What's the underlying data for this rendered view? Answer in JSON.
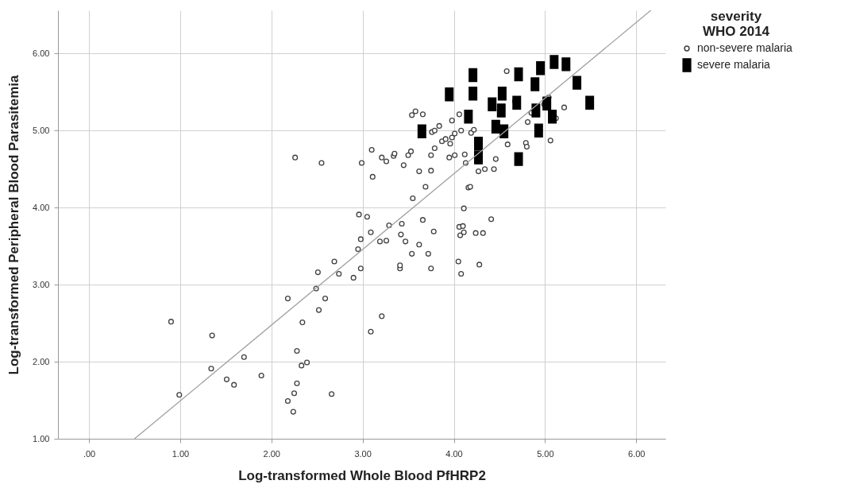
{
  "chart_data": {
    "type": "scatter",
    "xlabel": "Log-transformed Whole Blood PfHRP2",
    "ylabel": "Log-transformed Peripheral Blood Parasitemia",
    "legend_title": "severity WHO 2014",
    "legend": "top right",
    "grid": true,
    "xlim": [
      -0.34,
      6.32
    ],
    "ylim": [
      1.0,
      6.56
    ],
    "xticks": [
      {
        "value": 0,
        "label": ".00"
      },
      {
        "value": 1,
        "label": "1.00"
      },
      {
        "value": 2,
        "label": "2.00"
      },
      {
        "value": 3,
        "label": "3.00"
      },
      {
        "value": 4,
        "label": "4.00"
      },
      {
        "value": 5,
        "label": "5.00"
      },
      {
        "value": 6,
        "label": "6.00"
      }
    ],
    "yticks": [
      {
        "value": 1,
        "label": "1.00"
      },
      {
        "value": 2,
        "label": "2.00"
      },
      {
        "value": 3,
        "label": "3.00"
      },
      {
        "value": 4,
        "label": "4.00"
      },
      {
        "value": 5,
        "label": "5.00"
      },
      {
        "value": 6,
        "label": "6.00"
      }
    ],
    "series": [
      {
        "name": "non-severe malaria",
        "color": "#404040",
        "marker": "circle",
        "x": [
          0.9,
          0.99,
          1.35,
          1.34,
          1.51,
          1.59,
          1.7,
          1.89,
          2.18,
          2.18,
          2.24,
          2.25,
          2.28,
          2.28,
          2.33,
          2.39,
          2.34,
          2.26,
          2.55,
          2.49,
          2.51,
          2.52,
          2.59,
          2.66,
          2.69,
          2.74,
          2.9,
          2.95,
          2.98,
          2.96,
          2.98,
          2.99,
          3.05,
          3.09,
          3.09,
          3.1,
          3.11,
          3.19,
          3.21,
          3.21,
          3.26,
          3.26,
          3.29,
          3.34,
          3.35,
          3.41,
          3.41,
          3.42,
          3.43,
          3.45,
          3.47,
          3.5,
          3.53,
          3.55,
          3.54,
          3.54,
          3.58,
          3.62,
          3.62,
          3.66,
          3.66,
          3.69,
          3.72,
          3.75,
          3.75,
          3.75,
          3.76,
          3.78,
          3.79,
          3.79,
          3.84,
          3.87,
          3.91,
          3.95,
          3.96,
          3.98,
          3.98,
          4.01,
          4.01,
          4.05,
          4.06,
          4.06,
          4.07,
          4.08,
          4.08,
          4.1,
          4.11,
          4.11,
          4.12,
          4.13,
          4.16,
          4.18,
          4.19,
          4.22,
          4.24,
          4.27,
          4.28,
          4.32,
          4.34,
          4.41,
          4.44,
          4.46,
          4.58,
          4.59,
          4.67,
          4.79,
          4.8,
          4.81,
          4.85,
          4.99,
          5.04,
          5.06,
          5.12,
          5.21
        ],
        "values": [
          2.52,
          1.57,
          2.34,
          1.91,
          1.77,
          1.7,
          2.06,
          1.82,
          2.82,
          1.49,
          1.35,
          1.59,
          1.72,
          2.14,
          1.95,
          1.99,
          2.51,
          4.65,
          4.58,
          2.95,
          3.16,
          2.67,
          2.82,
          1.58,
          3.3,
          3.14,
          3.09,
          3.46,
          3.59,
          3.91,
          3.21,
          4.58,
          3.88,
          2.39,
          3.68,
          4.75,
          4.4,
          3.56,
          4.65,
          2.59,
          3.57,
          4.6,
          3.77,
          4.67,
          4.7,
          3.21,
          3.25,
          3.65,
          3.79,
          4.55,
          3.56,
          4.68,
          4.73,
          4.12,
          3.4,
          5.2,
          5.25,
          3.52,
          4.47,
          5.21,
          3.84,
          4.27,
          3.4,
          4.68,
          4.48,
          3.21,
          4.98,
          3.69,
          4.77,
          5.0,
          5.06,
          4.86,
          4.89,
          4.65,
          4.83,
          5.13,
          4.91,
          4.68,
          4.96,
          3.3,
          3.75,
          5.21,
          3.64,
          3.14,
          5.0,
          3.76,
          3.68,
          3.99,
          4.69,
          4.58,
          4.26,
          4.27,
          4.97,
          5.01,
          3.67,
          4.47,
          3.26,
          3.67,
          4.5,
          3.85,
          4.5,
          4.63,
          5.77,
          4.82,
          5.38,
          4.84,
          4.79,
          5.11,
          5.23,
          5.34,
          5.43,
          4.87,
          5.16,
          5.3
        ]
      },
      {
        "name": "severe malaria",
        "color": "#000000",
        "marker": "square",
        "x": [
          3.95,
          3.65,
          4.16,
          4.21,
          4.21,
          4.27,
          4.27,
          4.42,
          4.46,
          4.53,
          4.52,
          4.55,
          4.71,
          4.69,
          4.71,
          4.89,
          4.95,
          4.9,
          4.93,
          5.02,
          5.08,
          5.1,
          5.23,
          5.35,
          5.49
        ],
        "values": [
          5.47,
          4.99,
          5.18,
          5.72,
          5.48,
          4.83,
          4.65,
          5.34,
          5.05,
          5.48,
          5.26,
          4.99,
          5.73,
          5.36,
          4.63,
          5.6,
          5.81,
          5.26,
          5.0,
          5.35,
          5.18,
          5.89,
          5.86,
          5.62,
          5.36
        ]
      },
      {
        "type": "line",
        "color": "#a0a0a0",
        "x": [
          0.5,
          6.16
        ],
        "values": [
          1.0,
          6.56
        ]
      }
    ]
  }
}
